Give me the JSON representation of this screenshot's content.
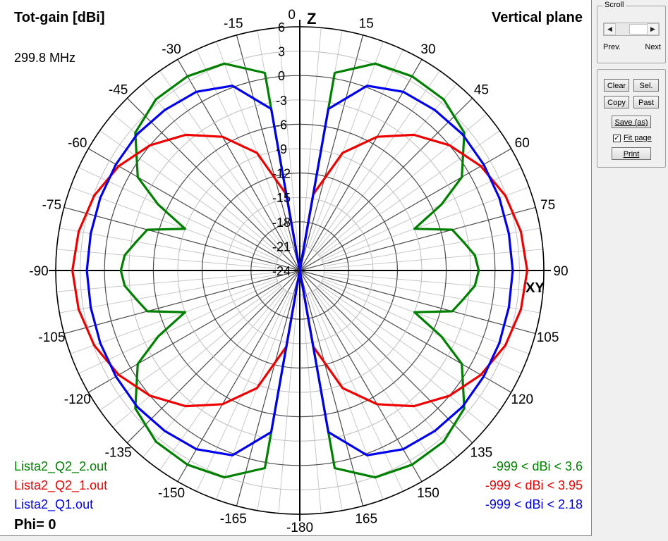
{
  "chart_data": {
    "type": "polar",
    "title": "Tot-gain [dBi]",
    "plane": "Vertical plane",
    "frequency": "299.8 MHz",
    "phi_label": "Phi= 0",
    "radial_range": [
      -24,
      6
    ],
    "radial_ticks": [
      "6",
      "3",
      "0",
      "-3",
      "-6",
      "-9",
      "-12",
      "-15",
      "-18",
      "-21",
      "-24"
    ],
    "angle_labels": [
      "0",
      "15",
      "30",
      "45",
      "60",
      "75",
      "90",
      "105",
      "120",
      "135",
      "150",
      "165",
      "-180",
      "-165",
      "-150",
      "-135",
      "-120",
      "-105",
      "-90",
      "-75",
      "-60",
      "-45",
      "-30",
      "-15"
    ],
    "z_axis_label": "Z",
    "xy_axis_label": "XY",
    "series": [
      {
        "name": "Lista2_Q2_2.out",
        "range_text": "-999 < dBi < 3.6",
        "color": "#008000",
        "angles_deg": [
          0,
          10,
          20,
          30,
          40,
          50,
          60,
          65,
          70,
          75,
          80,
          85,
          90
        ],
        "gain_dbi": [
          -24,
          0.7,
          3.1,
          3.6,
          3.5,
          2.4,
          -1.0,
          -4.8,
          -9.0,
          -4.6,
          -3.6,
          -2.4,
          -2.0
        ]
      },
      {
        "name": "Lista2_Q2_1.out",
        "range_text": "-999 < dBi < 3.95",
        "color": "#ee0000",
        "angles_deg": [
          0,
          10,
          20,
          30,
          40,
          50,
          60,
          70,
          80,
          90
        ],
        "gain_dbi": [
          -24,
          -14.5,
          -8.6,
          -5.0,
          -2.2,
          0.0,
          1.7,
          2.9,
          3.6,
          3.95
        ]
      },
      {
        "name": "Lista2_Q1.out",
        "range_text": "-999 < dBi < 2.18",
        "color": "#0000ee",
        "angles_deg": [
          0,
          10,
          20,
          30,
          40,
          50,
          60,
          70,
          80,
          90
        ],
        "gain_dbi": [
          -24,
          -3.8,
          0.2,
          1.4,
          1.8,
          2.1,
          2.1,
          2.1,
          2.1,
          2.18
        ]
      }
    ]
  },
  "controls": {
    "scroll_group": "Scroll",
    "prev_label": "Prev.",
    "next_label": "Next",
    "clear_label": "Clear",
    "sel_label": "Sel.",
    "copy_label": "Copy",
    "past_label": "Past",
    "save_label": "Save (as)",
    "fit_page_label": "Fit page",
    "fit_page_checked": true,
    "print_label": "Print"
  },
  "icons": {
    "scroll_left": "chevron-left-icon",
    "scroll_right": "chevron-right-icon",
    "checkbox": "check-icon"
  }
}
